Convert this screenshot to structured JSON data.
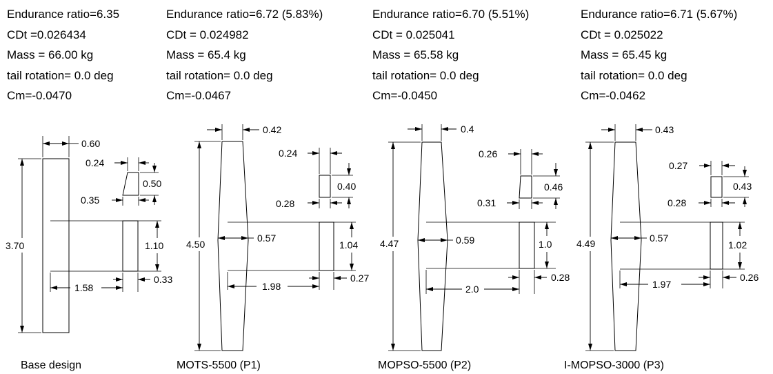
{
  "designs": [
    {
      "caption": "Base design",
      "endurance": "Endurance ratio=6.35",
      "cdt": "CDt =0.026434",
      "mass": "Mass = 66.00 kg",
      "tail_rotation": "tail rotation= 0.0 deg",
      "cm": "Cm=-0.0470",
      "dims": {
        "wing_chord": "0.60",
        "span": "3.70",
        "tail_span": "1.10",
        "tail_chord": "0.33",
        "boom": "1.58",
        "vt_top": "0.24",
        "vt_height": "0.50",
        "vt_root": "0.35"
      }
    },
    {
      "caption": "MOTS-5500 (P1)",
      "endurance": "Endurance ratio=6.72 (5.83%)",
      "cdt": "CDt = 0.024982",
      "mass": "Mass = 65.4 kg",
      "tail_rotation": "tail rotation= 0.0 deg",
      "cm": "Cm=-0.0467",
      "dims": {
        "tip_chord": "0.42",
        "span": "4.50",
        "root_chord": "0.57",
        "tail_span": "1.04",
        "tail_chord": "0.27",
        "boom": "1.98",
        "vt_top": "0.24",
        "vt_height": "0.40",
        "vt_root": "0.28"
      }
    },
    {
      "caption": "MOPSO-5500 (P2)",
      "endurance": "Endurance ratio=6.70 (5.51%)",
      "cdt": "CDt = 0.025041",
      "mass": "Mass = 65.58 kg",
      "tail_rotation": "tail rotation= 0.0 deg",
      "cm": "Cm=-0.0450",
      "dims": {
        "tip_chord": "0.4",
        "span": "4.47",
        "root_chord": "0.59",
        "tail_span": "1.0",
        "tail_chord": "0.28",
        "boom": "2.0",
        "vt_top": "0.26",
        "vt_height": "0.46",
        "vt_root": "0.31"
      }
    },
    {
      "caption": "I-MOPSO-3000 (P3)",
      "endurance": "Endurance ratio=6.71 (5.67%)",
      "cdt": "CDt = 0.025022",
      "mass": "Mass = 65.45 kg",
      "tail_rotation": "tail rotation= 0.0 deg",
      "cm": "Cm=-0.0462",
      "dims": {
        "tip_chord": "0.43",
        "span": "4.49",
        "root_chord": "0.57",
        "tail_span": "1.02",
        "tail_chord": "0.26",
        "boom": "1.97",
        "vt_top": "0.27",
        "vt_height": "0.43",
        "vt_root": "0.28"
      }
    }
  ]
}
